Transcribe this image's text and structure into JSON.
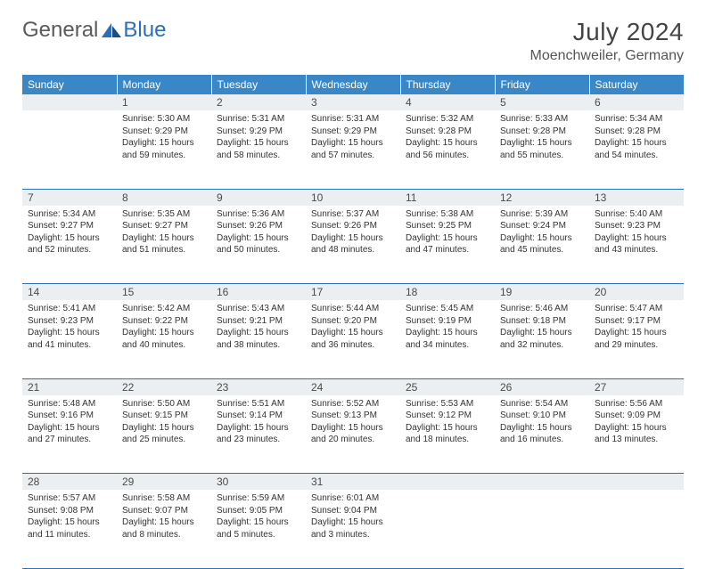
{
  "logo": {
    "text1": "General",
    "text2": "Blue"
  },
  "title": "July 2024",
  "location": "Moenchweiler, Germany",
  "colors": {
    "header_bg": "#3a87c8",
    "header_text": "#ffffff",
    "daynum_bg": "#eceff1",
    "rule": "#2d6fb5",
    "logo_blue": "#2d6fb5",
    "logo_gray": "#5a5a5a"
  },
  "weekdays": [
    "Sunday",
    "Monday",
    "Tuesday",
    "Wednesday",
    "Thursday",
    "Friday",
    "Saturday"
  ],
  "first_weekday_index": 1,
  "days": [
    {
      "n": 1,
      "sr": "5:30 AM",
      "ss": "9:29 PM",
      "dl": "15 hours and 59 minutes."
    },
    {
      "n": 2,
      "sr": "5:31 AM",
      "ss": "9:29 PM",
      "dl": "15 hours and 58 minutes."
    },
    {
      "n": 3,
      "sr": "5:31 AM",
      "ss": "9:29 PM",
      "dl": "15 hours and 57 minutes."
    },
    {
      "n": 4,
      "sr": "5:32 AM",
      "ss": "9:28 PM",
      "dl": "15 hours and 56 minutes."
    },
    {
      "n": 5,
      "sr": "5:33 AM",
      "ss": "9:28 PM",
      "dl": "15 hours and 55 minutes."
    },
    {
      "n": 6,
      "sr": "5:34 AM",
      "ss": "9:28 PM",
      "dl": "15 hours and 54 minutes."
    },
    {
      "n": 7,
      "sr": "5:34 AM",
      "ss": "9:27 PM",
      "dl": "15 hours and 52 minutes."
    },
    {
      "n": 8,
      "sr": "5:35 AM",
      "ss": "9:27 PM",
      "dl": "15 hours and 51 minutes."
    },
    {
      "n": 9,
      "sr": "5:36 AM",
      "ss": "9:26 PM",
      "dl": "15 hours and 50 minutes."
    },
    {
      "n": 10,
      "sr": "5:37 AM",
      "ss": "9:26 PM",
      "dl": "15 hours and 48 minutes."
    },
    {
      "n": 11,
      "sr": "5:38 AM",
      "ss": "9:25 PM",
      "dl": "15 hours and 47 minutes."
    },
    {
      "n": 12,
      "sr": "5:39 AM",
      "ss": "9:24 PM",
      "dl": "15 hours and 45 minutes."
    },
    {
      "n": 13,
      "sr": "5:40 AM",
      "ss": "9:23 PM",
      "dl": "15 hours and 43 minutes."
    },
    {
      "n": 14,
      "sr": "5:41 AM",
      "ss": "9:23 PM",
      "dl": "15 hours and 41 minutes."
    },
    {
      "n": 15,
      "sr": "5:42 AM",
      "ss": "9:22 PM",
      "dl": "15 hours and 40 minutes."
    },
    {
      "n": 16,
      "sr": "5:43 AM",
      "ss": "9:21 PM",
      "dl": "15 hours and 38 minutes."
    },
    {
      "n": 17,
      "sr": "5:44 AM",
      "ss": "9:20 PM",
      "dl": "15 hours and 36 minutes."
    },
    {
      "n": 18,
      "sr": "5:45 AM",
      "ss": "9:19 PM",
      "dl": "15 hours and 34 minutes."
    },
    {
      "n": 19,
      "sr": "5:46 AM",
      "ss": "9:18 PM",
      "dl": "15 hours and 32 minutes."
    },
    {
      "n": 20,
      "sr": "5:47 AM",
      "ss": "9:17 PM",
      "dl": "15 hours and 29 minutes."
    },
    {
      "n": 21,
      "sr": "5:48 AM",
      "ss": "9:16 PM",
      "dl": "15 hours and 27 minutes."
    },
    {
      "n": 22,
      "sr": "5:50 AM",
      "ss": "9:15 PM",
      "dl": "15 hours and 25 minutes."
    },
    {
      "n": 23,
      "sr": "5:51 AM",
      "ss": "9:14 PM",
      "dl": "15 hours and 23 minutes."
    },
    {
      "n": 24,
      "sr": "5:52 AM",
      "ss": "9:13 PM",
      "dl": "15 hours and 20 minutes."
    },
    {
      "n": 25,
      "sr": "5:53 AM",
      "ss": "9:12 PM",
      "dl": "15 hours and 18 minutes."
    },
    {
      "n": 26,
      "sr": "5:54 AM",
      "ss": "9:10 PM",
      "dl": "15 hours and 16 minutes."
    },
    {
      "n": 27,
      "sr": "5:56 AM",
      "ss": "9:09 PM",
      "dl": "15 hours and 13 minutes."
    },
    {
      "n": 28,
      "sr": "5:57 AM",
      "ss": "9:08 PM",
      "dl": "15 hours and 11 minutes."
    },
    {
      "n": 29,
      "sr": "5:58 AM",
      "ss": "9:07 PM",
      "dl": "15 hours and 8 minutes."
    },
    {
      "n": 30,
      "sr": "5:59 AM",
      "ss": "9:05 PM",
      "dl": "15 hours and 5 minutes."
    },
    {
      "n": 31,
      "sr": "6:01 AM",
      "ss": "9:04 PM",
      "dl": "15 hours and 3 minutes."
    }
  ],
  "labels": {
    "sunrise": "Sunrise:",
    "sunset": "Sunset:",
    "daylight": "Daylight:"
  }
}
